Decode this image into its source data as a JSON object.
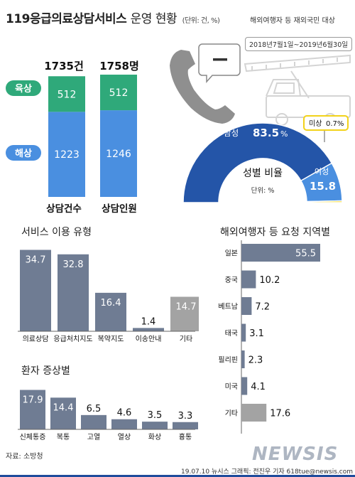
{
  "header": {
    "title_main": "119응급의료상담서비스",
    "title_sub": "운영 현황",
    "unit": "(단위: 건, %)",
    "target": "해외여행자 등 재외국민 대상",
    "period": "2018년7월1일~2019년6월30일"
  },
  "chart_data": [
    {
      "id": "consultation-totals",
      "type": "bar",
      "stacked": true,
      "categories": [
        "상담건수",
        "상담인원"
      ],
      "totals": [
        "1735건",
        "1758명"
      ],
      "series": [
        {
          "name": "육상",
          "values": [
            512,
            512
          ],
          "color": "#2fa97a"
        },
        {
          "name": "해상",
          "values": [
            1223,
            1246
          ],
          "color": "#4a8fe0"
        }
      ]
    },
    {
      "id": "gender-ratio",
      "type": "pie",
      "title": "성별 비율",
      "unit_label": "단위: %",
      "slices": [
        {
          "label": "남성",
          "value": 83.5,
          "display": "83.5",
          "suffix": "%",
          "color": "#2455a8"
        },
        {
          "label": "여성",
          "value": 15.8,
          "display": "15.8",
          "color": "#4a8fe0"
        },
        {
          "label": "미상",
          "value": 0.7,
          "display": "0.7%",
          "color": "#f2d21a"
        }
      ]
    },
    {
      "id": "service-type",
      "type": "bar",
      "title": "서비스 이용 유형",
      "categories": [
        "의료상담",
        "응급처치지도",
        "복약지도",
        "이송안내",
        "기타"
      ],
      "values": [
        34.7,
        32.8,
        16.4,
        1.4,
        14.7
      ],
      "labels": [
        "34.7",
        "32.8",
        "16.4",
        "1.4",
        "14.7"
      ],
      "colors": [
        "#6f7c93",
        "#6f7c93",
        "#6f7c93",
        "#6f7c93",
        "#a3a3a3"
      ]
    },
    {
      "id": "symptoms",
      "type": "bar",
      "title": "환자 증상별",
      "categories": [
        "신체통증",
        "복통",
        "고열",
        "열상",
        "화상",
        "흉통"
      ],
      "values": [
        17.9,
        14.4,
        6.5,
        4.6,
        3.5,
        3.3
      ],
      "labels": [
        "17.9",
        "14.4",
        "6.5",
        "4.6",
        "3.5",
        "3.3"
      ],
      "color": "#6f7c93"
    },
    {
      "id": "regions",
      "type": "bar",
      "orientation": "horizontal",
      "title": "해외여행자 등 요청 지역별",
      "categories": [
        "일본",
        "중국",
        "베트남",
        "태국",
        "필리핀",
        "미국",
        "기타"
      ],
      "values": [
        55.5,
        10.2,
        7.2,
        3.1,
        2.3,
        4.1,
        17.6
      ],
      "labels": [
        "55.5",
        "10.2",
        "7.2",
        "3.1",
        "2.3",
        "4.1",
        "17.6"
      ],
      "colors": [
        "#6f7c93",
        "#6f7c93",
        "#6f7c93",
        "#6f7c93",
        "#6f7c93",
        "#6f7c93",
        "#a3a3a3"
      ]
    }
  ],
  "footer": {
    "source": "자료: 소방청",
    "credit": "19.07.10  뉴시스 그래픽: 전진우 기자  618tue@newsis.com",
    "watermark": "NEWSIS"
  }
}
